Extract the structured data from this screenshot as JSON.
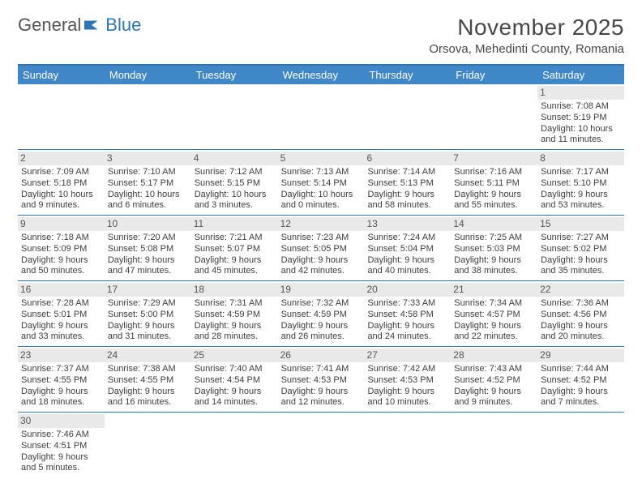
{
  "logo": {
    "part1": "General",
    "part2": "Blue"
  },
  "header": {
    "month_title": "November 2025",
    "location": "Orsova, Mehedinti County, Romania"
  },
  "colors": {
    "header_bg": "#3f87c7",
    "border": "#2d76b6",
    "daynum_bg": "#e9e9e9"
  },
  "weekdays": [
    "Sunday",
    "Monday",
    "Tuesday",
    "Wednesday",
    "Thursday",
    "Friday",
    "Saturday"
  ],
  "weeks": [
    [
      null,
      null,
      null,
      null,
      null,
      null,
      {
        "n": "1",
        "sr": "Sunrise: 7:08 AM",
        "ss": "Sunset: 5:19 PM",
        "d1": "Daylight: 10 hours",
        "d2": "and 11 minutes."
      }
    ],
    [
      {
        "n": "2",
        "sr": "Sunrise: 7:09 AM",
        "ss": "Sunset: 5:18 PM",
        "d1": "Daylight: 10 hours",
        "d2": "and 9 minutes."
      },
      {
        "n": "3",
        "sr": "Sunrise: 7:10 AM",
        "ss": "Sunset: 5:17 PM",
        "d1": "Daylight: 10 hours",
        "d2": "and 6 minutes."
      },
      {
        "n": "4",
        "sr": "Sunrise: 7:12 AM",
        "ss": "Sunset: 5:15 PM",
        "d1": "Daylight: 10 hours",
        "d2": "and 3 minutes."
      },
      {
        "n": "5",
        "sr": "Sunrise: 7:13 AM",
        "ss": "Sunset: 5:14 PM",
        "d1": "Daylight: 10 hours",
        "d2": "and 0 minutes."
      },
      {
        "n": "6",
        "sr": "Sunrise: 7:14 AM",
        "ss": "Sunset: 5:13 PM",
        "d1": "Daylight: 9 hours",
        "d2": "and 58 minutes."
      },
      {
        "n": "7",
        "sr": "Sunrise: 7:16 AM",
        "ss": "Sunset: 5:11 PM",
        "d1": "Daylight: 9 hours",
        "d2": "and 55 minutes."
      },
      {
        "n": "8",
        "sr": "Sunrise: 7:17 AM",
        "ss": "Sunset: 5:10 PM",
        "d1": "Daylight: 9 hours",
        "d2": "and 53 minutes."
      }
    ],
    [
      {
        "n": "9",
        "sr": "Sunrise: 7:18 AM",
        "ss": "Sunset: 5:09 PM",
        "d1": "Daylight: 9 hours",
        "d2": "and 50 minutes."
      },
      {
        "n": "10",
        "sr": "Sunrise: 7:20 AM",
        "ss": "Sunset: 5:08 PM",
        "d1": "Daylight: 9 hours",
        "d2": "and 47 minutes."
      },
      {
        "n": "11",
        "sr": "Sunrise: 7:21 AM",
        "ss": "Sunset: 5:07 PM",
        "d1": "Daylight: 9 hours",
        "d2": "and 45 minutes."
      },
      {
        "n": "12",
        "sr": "Sunrise: 7:23 AM",
        "ss": "Sunset: 5:05 PM",
        "d1": "Daylight: 9 hours",
        "d2": "and 42 minutes."
      },
      {
        "n": "13",
        "sr": "Sunrise: 7:24 AM",
        "ss": "Sunset: 5:04 PM",
        "d1": "Daylight: 9 hours",
        "d2": "and 40 minutes."
      },
      {
        "n": "14",
        "sr": "Sunrise: 7:25 AM",
        "ss": "Sunset: 5:03 PM",
        "d1": "Daylight: 9 hours",
        "d2": "and 38 minutes."
      },
      {
        "n": "15",
        "sr": "Sunrise: 7:27 AM",
        "ss": "Sunset: 5:02 PM",
        "d1": "Daylight: 9 hours",
        "d2": "and 35 minutes."
      }
    ],
    [
      {
        "n": "16",
        "sr": "Sunrise: 7:28 AM",
        "ss": "Sunset: 5:01 PM",
        "d1": "Daylight: 9 hours",
        "d2": "and 33 minutes."
      },
      {
        "n": "17",
        "sr": "Sunrise: 7:29 AM",
        "ss": "Sunset: 5:00 PM",
        "d1": "Daylight: 9 hours",
        "d2": "and 31 minutes."
      },
      {
        "n": "18",
        "sr": "Sunrise: 7:31 AM",
        "ss": "Sunset: 4:59 PM",
        "d1": "Daylight: 9 hours",
        "d2": "and 28 minutes."
      },
      {
        "n": "19",
        "sr": "Sunrise: 7:32 AM",
        "ss": "Sunset: 4:59 PM",
        "d1": "Daylight: 9 hours",
        "d2": "and 26 minutes."
      },
      {
        "n": "20",
        "sr": "Sunrise: 7:33 AM",
        "ss": "Sunset: 4:58 PM",
        "d1": "Daylight: 9 hours",
        "d2": "and 24 minutes."
      },
      {
        "n": "21",
        "sr": "Sunrise: 7:34 AM",
        "ss": "Sunset: 4:57 PM",
        "d1": "Daylight: 9 hours",
        "d2": "and 22 minutes."
      },
      {
        "n": "22",
        "sr": "Sunrise: 7:36 AM",
        "ss": "Sunset: 4:56 PM",
        "d1": "Daylight: 9 hours",
        "d2": "and 20 minutes."
      }
    ],
    [
      {
        "n": "23",
        "sr": "Sunrise: 7:37 AM",
        "ss": "Sunset: 4:55 PM",
        "d1": "Daylight: 9 hours",
        "d2": "and 18 minutes."
      },
      {
        "n": "24",
        "sr": "Sunrise: 7:38 AM",
        "ss": "Sunset: 4:55 PM",
        "d1": "Daylight: 9 hours",
        "d2": "and 16 minutes."
      },
      {
        "n": "25",
        "sr": "Sunrise: 7:40 AM",
        "ss": "Sunset: 4:54 PM",
        "d1": "Daylight: 9 hours",
        "d2": "and 14 minutes."
      },
      {
        "n": "26",
        "sr": "Sunrise: 7:41 AM",
        "ss": "Sunset: 4:53 PM",
        "d1": "Daylight: 9 hours",
        "d2": "and 12 minutes."
      },
      {
        "n": "27",
        "sr": "Sunrise: 7:42 AM",
        "ss": "Sunset: 4:53 PM",
        "d1": "Daylight: 9 hours",
        "d2": "and 10 minutes."
      },
      {
        "n": "28",
        "sr": "Sunrise: 7:43 AM",
        "ss": "Sunset: 4:52 PM",
        "d1": "Daylight: 9 hours",
        "d2": "and 9 minutes."
      },
      {
        "n": "29",
        "sr": "Sunrise: 7:44 AM",
        "ss": "Sunset: 4:52 PM",
        "d1": "Daylight: 9 hours",
        "d2": "and 7 minutes."
      }
    ],
    [
      {
        "n": "30",
        "sr": "Sunrise: 7:46 AM",
        "ss": "Sunset: 4:51 PM",
        "d1": "Daylight: 9 hours",
        "d2": "and 5 minutes."
      },
      null,
      null,
      null,
      null,
      null,
      null
    ]
  ]
}
